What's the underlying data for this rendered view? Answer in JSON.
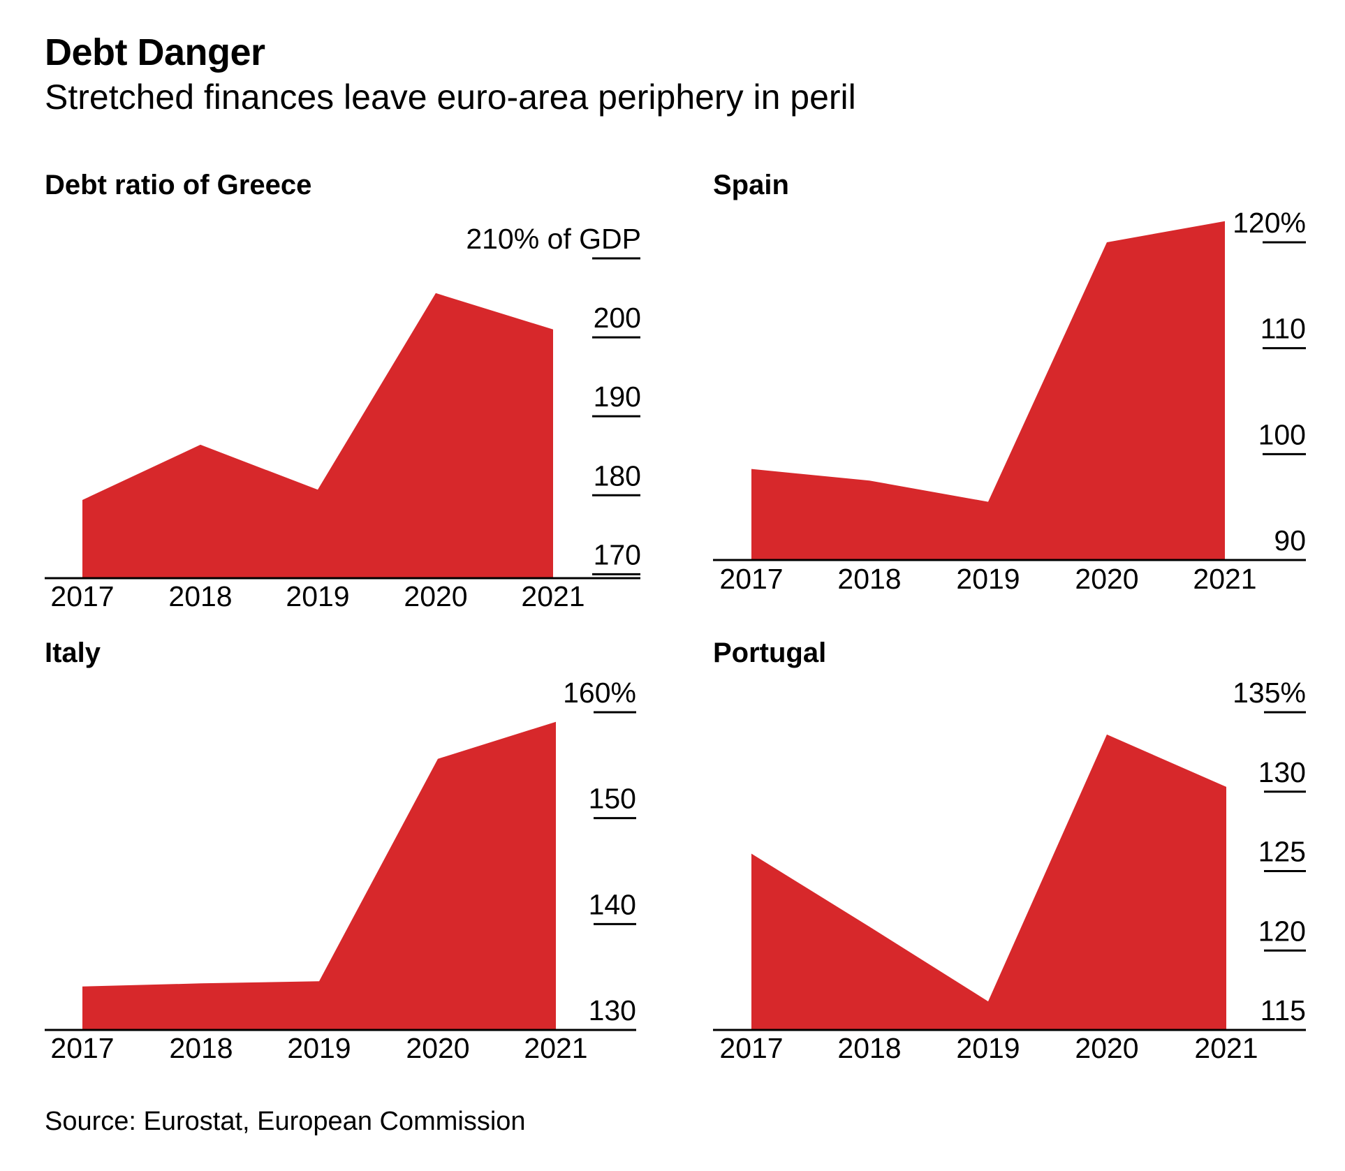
{
  "header": {
    "title": "Debt Danger",
    "subtitle": "Stretched finances leave euro-area periphery in peril"
  },
  "footer": {
    "source": "Source: Eurostat, European Commission"
  },
  "colors": {
    "area": "#d7282b",
    "axis": "#000000"
  },
  "chart_data": [
    {
      "type": "area",
      "title": "Debt ratio of Greece",
      "x": [
        "2017",
        "2018",
        "2019",
        "2020",
        "2021"
      ],
      "values": [
        179.4,
        186.4,
        180.7,
        205.6,
        201.0
      ],
      "ylim": [
        169.5,
        210
      ],
      "yticks": [
        170,
        180,
        190,
        200,
        210
      ],
      "ytick_labels": [
        "170",
        "180",
        "190",
        "200",
        "210% of GDP"
      ],
      "axis_position": "right"
    },
    {
      "type": "area",
      "title": "Spain",
      "x": [
        "2017",
        "2018",
        "2019",
        "2020",
        "2021"
      ],
      "values": [
        98.6,
        97.5,
        95.5,
        120.0,
        122.0
      ],
      "ylim": [
        90,
        120
      ],
      "yticks": [
        90,
        100,
        110,
        120
      ],
      "ytick_labels": [
        "90",
        "100",
        "110",
        "120%"
      ],
      "axis_position": "right"
    },
    {
      "type": "area",
      "title": "Italy",
      "x": [
        "2017",
        "2018",
        "2019",
        "2020",
        "2021"
      ],
      "values": [
        134.1,
        134.4,
        134.6,
        155.6,
        159.1
      ],
      "ylim": [
        130,
        160
      ],
      "yticks": [
        130,
        140,
        150,
        160
      ],
      "ytick_labels": [
        "130",
        "140",
        "150",
        "160%"
      ],
      "axis_position": "right"
    },
    {
      "type": "area",
      "title": "Portugal",
      "x": [
        "2017",
        "2018",
        "2019",
        "2020",
        "2021"
      ],
      "values": [
        126.1,
        121.5,
        116.8,
        133.6,
        130.3
      ],
      "ylim": [
        115,
        135
      ],
      "yticks": [
        115,
        120,
        125,
        130,
        135
      ],
      "ytick_labels": [
        "115",
        "120",
        "125",
        "130",
        "135%"
      ],
      "axis_position": "right"
    }
  ]
}
